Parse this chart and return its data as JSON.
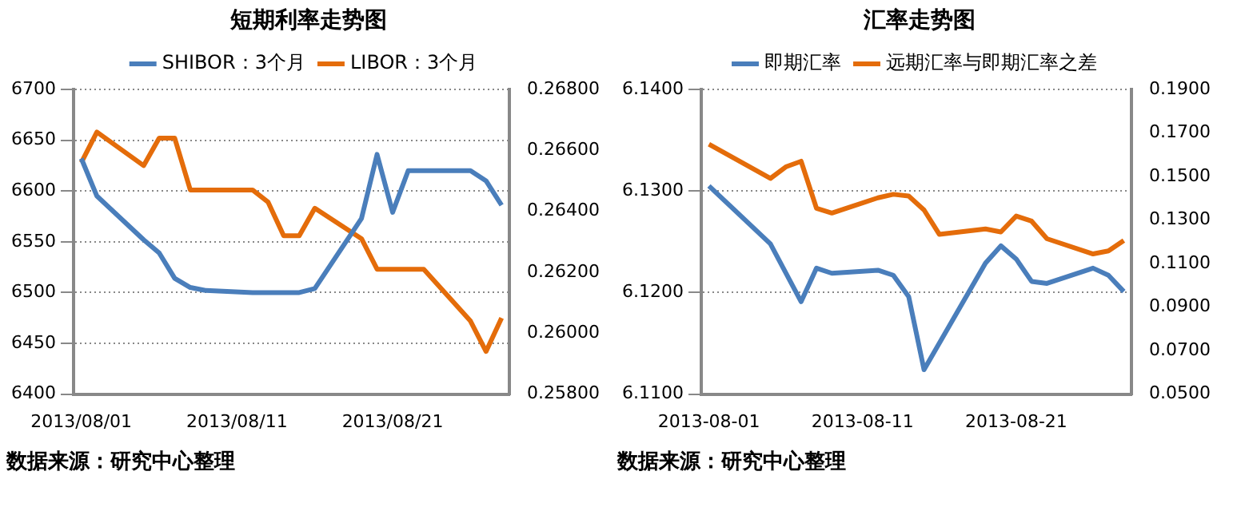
{
  "chart_data": [
    {
      "type": "line",
      "title": "短期利率走势图",
      "categories": [
        "2013/08/01",
        null,
        null,
        null,
        null,
        null,
        null,
        null,
        null,
        null,
        "2013/08/11",
        null,
        null,
        null,
        null,
        null,
        null,
        null,
        null,
        null,
        "2013/08/21",
        null,
        null,
        null,
        null,
        null,
        null,
        null
      ],
      "series": [
        {
          "name": "SHIBOR：3个月",
          "color": "#4a7ebb",
          "values": [
            6632,
            6595,
            null,
            null,
            6552,
            6539,
            6514,
            6505,
            6502,
            null,
            null,
            6500,
            6500,
            6500,
            6500,
            6504,
            null,
            null,
            6573,
            6636,
            6579,
            6620,
            6620,
            null,
            null,
            6620,
            6610,
            6586
          ]
        },
        {
          "name": "LIBOR：3个月",
          "color": "#e46c0a",
          "axis": "y2",
          "values": [
            0.2656,
            0.2666,
            null,
            null,
            0.2655,
            0.2664,
            0.2664,
            0.2647,
            0.2647,
            null,
            null,
            0.2647,
            0.2643,
            0.2632,
            0.2632,
            0.2641,
            null,
            null,
            0.2631,
            0.2621,
            0.2621,
            0.2621,
            0.2621,
            null,
            null,
            0.2604,
            0.2594,
            0.2605
          ]
        }
      ],
      "ylim": [
        6400,
        6700
      ],
      "yticks": [
        6400,
        6450,
        6500,
        6550,
        6600,
        6650,
        6700
      ],
      "y2lim": [
        0.258,
        0.268
      ],
      "y2ticks": [
        {
          "value": 0.258,
          "label": "0.25800"
        },
        {
          "value": 0.26,
          "label": "0.26000"
        },
        {
          "value": 0.262,
          "label": "0.26200"
        },
        {
          "value": 0.264,
          "label": "0.26400"
        },
        {
          "value": 0.266,
          "label": "0.26600"
        },
        {
          "value": 0.268,
          "label": "0.26800"
        }
      ],
      "grid": "y",
      "legend": "top",
      "marker": "none",
      "line_style": "solid",
      "annotations": [
        "数据来源：研究中心整理"
      ]
    },
    {
      "type": "line",
      "title": "汇率走势图",
      "categories": [
        "2013-08-01",
        null,
        null,
        null,
        null,
        null,
        null,
        null,
        null,
        null,
        "2013-08-11",
        null,
        null,
        null,
        null,
        null,
        null,
        null,
        null,
        null,
        "2013-08-21",
        null,
        null,
        null,
        null,
        null,
        null,
        null
      ],
      "series": [
        {
          "name": "即期汇率",
          "color": "#4a7ebb",
          "values": [
            6.1305,
            null,
            null,
            null,
            6.1248,
            null,
            6.1191,
            6.1224,
            6.1219,
            null,
            null,
            6.1222,
            6.1217,
            6.1196,
            6.1124,
            null,
            null,
            null,
            6.1229,
            6.1246,
            6.1233,
            6.1211,
            6.1209,
            null,
            null,
            6.1224,
            6.1217,
            6.1201
          ]
        },
        {
          "name": "远期汇率与即期汇率之差",
          "color": "#e46c0a",
          "axis": "y2",
          "values": [
            0.1648,
            null,
            null,
            null,
            0.1491,
            0.1544,
            0.157,
            0.1354,
            0.1332,
            null,
            null,
            0.1402,
            0.1418,
            0.141,
            0.1346,
            0.1234,
            null,
            null,
            0.1259,
            0.1245,
            0.1318,
            0.1295,
            0.1214,
            null,
            null,
            0.1144,
            0.1158,
            0.1206
          ]
        }
      ],
      "ylim": [
        6.11,
        6.14
      ],
      "yticks": [
        {
          "value": 6.11,
          "label": "6.1100"
        },
        {
          "value": 6.12,
          "label": "6.1200"
        },
        {
          "value": 6.13,
          "label": "6.1300"
        },
        {
          "value": 6.14,
          "label": "6.1400"
        }
      ],
      "y2lim": [
        0.05,
        0.19
      ],
      "y2ticks": [
        {
          "value": 0.05,
          "label": "0.0500"
        },
        {
          "value": 0.07,
          "label": "0.0700"
        },
        {
          "value": 0.09,
          "label": "0.0900"
        },
        {
          "value": 0.11,
          "label": "0.1100"
        },
        {
          "value": 0.13,
          "label": "0.1300"
        },
        {
          "value": 0.15,
          "label": "0.1500"
        },
        {
          "value": 0.17,
          "label": "0.1700"
        },
        {
          "value": 0.19,
          "label": "0.1900"
        }
      ],
      "grid": "y",
      "legend": "top",
      "marker": "none",
      "line_style": "solid",
      "annotations": [
        "数据来源：研究中心整理"
      ]
    }
  ]
}
